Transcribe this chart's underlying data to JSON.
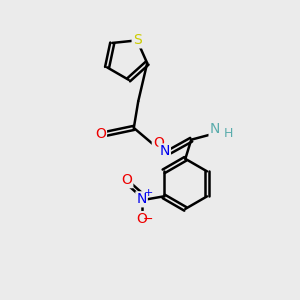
{
  "bg_color": "#ebebeb",
  "atom_colors": {
    "C": "#000000",
    "H": "#5aacac",
    "N": "#0000ee",
    "O": "#ee0000",
    "S": "#cccc00"
  },
  "bond_color": "#000000",
  "bond_width": 1.8,
  "font_size_atom": 10,
  "font_size_small": 8,
  "figsize": [
    3.0,
    3.0
  ],
  "dpi": 100
}
